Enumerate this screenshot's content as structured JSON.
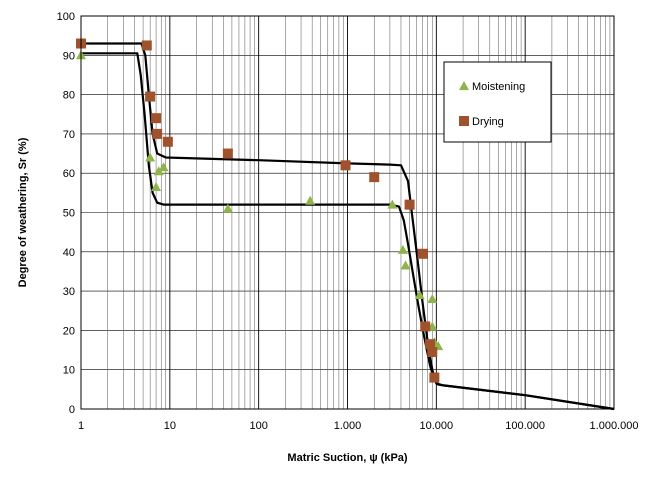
{
  "chart_data": {
    "type": "scatter",
    "title": "",
    "xlabel": "Matric Suction, ψ (kPa)",
    "ylabel": "Degree of weathering, Sr (%)",
    "xscale": "log",
    "xlim": [
      1,
      1000000
    ],
    "ylim": [
      0,
      100
    ],
    "grid": true,
    "legend_position": "top-right",
    "x_tick_labels": [
      "1",
      "10",
      "100",
      "1.000",
      "10.000",
      "100.000",
      "1.000.000"
    ],
    "y_ticks": [
      0,
      10,
      20,
      30,
      40,
      50,
      60,
      70,
      80,
      90,
      100
    ],
    "series": [
      {
        "name": "Moistening",
        "marker": "triangle",
        "color": "#8fb54a",
        "points": [
          [
            1,
            90
          ],
          [
            6,
            64
          ],
          [
            7,
            56.5
          ],
          [
            7.5,
            60.5
          ],
          [
            8.5,
            61.5
          ],
          [
            45,
            51
          ],
          [
            380,
            53
          ],
          [
            3200,
            52
          ],
          [
            4200,
            40.5
          ],
          [
            4500,
            36.5
          ],
          [
            6500,
            29
          ],
          [
            9000,
            28
          ],
          [
            9000,
            21
          ],
          [
            9500,
            17
          ],
          [
            10500,
            16
          ]
        ]
      },
      {
        "name": "Drying",
        "marker": "square",
        "color": "#a0522d",
        "points": [
          [
            1,
            93
          ],
          [
            5.5,
            92.5
          ],
          [
            6,
            79.5
          ],
          [
            7,
            74
          ],
          [
            7.2,
            70
          ],
          [
            9.5,
            68
          ],
          [
            45,
            65
          ],
          [
            950,
            62
          ],
          [
            2000,
            59
          ],
          [
            5000,
            52
          ],
          [
            7000,
            39.5
          ],
          [
            7500,
            21
          ],
          [
            8500,
            16.5
          ],
          [
            9000,
            14.5
          ],
          [
            9500,
            8
          ]
        ]
      },
      {
        "name": "",
        "type": "line",
        "color": "#000000",
        "points": [
          [
            1,
            93
          ],
          [
            4.8,
            93
          ],
          [
            5.3,
            90
          ],
          [
            5.8,
            80
          ],
          [
            6.4,
            70
          ],
          [
            7.2,
            65
          ],
          [
            9,
            64
          ],
          [
            100,
            63.3
          ],
          [
            1000,
            62.5
          ],
          [
            3000,
            62.2
          ],
          [
            4000,
            62
          ],
          [
            4800,
            58
          ],
          [
            5300,
            50
          ],
          [
            6000,
            40
          ],
          [
            7000,
            27
          ],
          [
            8000,
            17
          ],
          [
            9000,
            10
          ],
          [
            10000,
            6.5
          ],
          [
            12000,
            6
          ],
          [
            100000,
            3.5
          ],
          [
            1000000,
            0
          ]
        ]
      },
      {
        "name": "",
        "type": "line",
        "color": "#000000",
        "points": [
          [
            1,
            90.5
          ],
          [
            4.3,
            90.5
          ],
          [
            4.7,
            85
          ],
          [
            5.2,
            75
          ],
          [
            5.8,
            62
          ],
          [
            6.4,
            55
          ],
          [
            7.2,
            52.5
          ],
          [
            8.5,
            52
          ],
          [
            100,
            52
          ],
          [
            1000,
            52
          ],
          [
            3000,
            52
          ],
          [
            3800,
            51.5
          ],
          [
            4300,
            48
          ],
          [
            4800,
            42
          ],
          [
            5400,
            35
          ],
          [
            6200,
            27
          ],
          [
            7200,
            19
          ],
          [
            8500,
            11
          ],
          [
            9500,
            7.5
          ],
          [
            10500,
            6.2
          ],
          [
            12000,
            6
          ],
          [
            100000,
            3.5
          ],
          [
            1000000,
            0
          ]
        ]
      }
    ]
  }
}
